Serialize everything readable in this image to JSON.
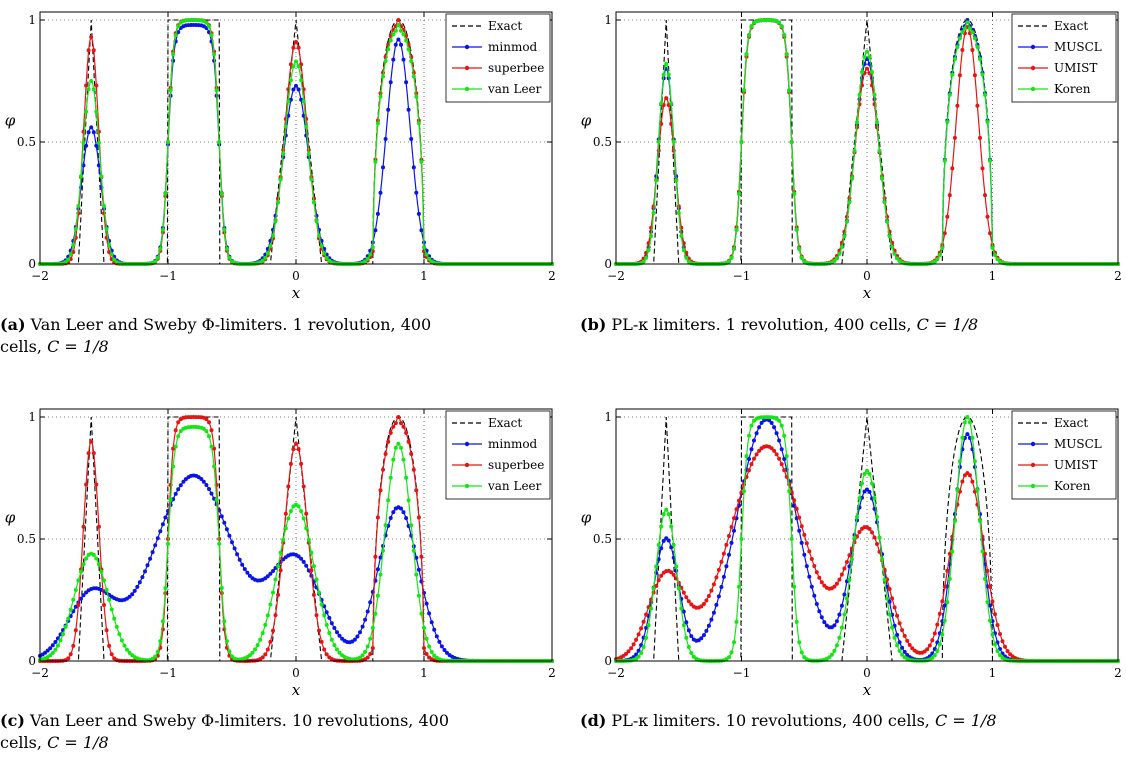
{
  "captions": [
    {
      "label": "(a)",
      "text": "Van Leer and Sweby Φ-limiters. 1 revolution, 400",
      "text2": "cells,",
      "math": "C = 1/8"
    },
    {
      "label": "(b)",
      "text": "PL-κ limiters. 1 revolution, 400 cells,",
      "text2": "",
      "math": "C = 1/8"
    },
    {
      "label": "(c)",
      "text": "Van Leer and Sweby Φ-limiters. 10 revolutions, 400",
      "text2": "cells,",
      "math": "C = 1/8"
    },
    {
      "label": "(d)",
      "text": "PL-κ limiters. 10 revolutions, 400 cells,",
      "text2": "",
      "math": "C = 1/8"
    }
  ],
  "chart_data": [
    {
      "type": "line",
      "panel": "a",
      "xlabel": "x",
      "ylabel": "φ",
      "xlim": [
        -2,
        2
      ],
      "ylim": [
        0,
        1
      ],
      "xticks": [
        -2,
        -1,
        0,
        1,
        2
      ],
      "yticks": [
        0,
        0.5,
        1
      ],
      "xtick_labels": [
        "−2",
        "−1",
        "0",
        "1",
        "2"
      ],
      "ytick_labels": [
        "0",
        "0.5",
        "1"
      ],
      "grid": true,
      "legend": "top-right",
      "series": [
        {
          "name": "Exact",
          "color": "#000000",
          "style": "dashed",
          "marker": false,
          "h": [
            1,
            1,
            1,
            1
          ],
          "w": [
            1,
            1,
            1,
            1
          ]
        },
        {
          "name": "minmod",
          "color": "#0a14e6",
          "style": "solid",
          "marker": true,
          "h": [
            0.56,
            0.98,
            0.73,
            0.92
          ],
          "w": [
            1.35,
            1.1,
            1.2,
            1.12
          ]
        },
        {
          "name": "superbee",
          "color": "#e61414",
          "style": "solid",
          "marker": true,
          "h": [
            0.93,
            1,
            0.91,
            1
          ],
          "w": [
            1.05,
            1,
            1.05,
            1
          ]
        },
        {
          "name": "van Leer",
          "color": "#14e614",
          "style": "solid",
          "marker": true,
          "h": [
            0.75,
            1,
            0.83,
            0.98
          ],
          "w": [
            1.2,
            1.05,
            1.1,
            1.05
          ]
        }
      ]
    },
    {
      "type": "line",
      "panel": "b",
      "xlabel": "x",
      "ylabel": "φ",
      "xlim": [
        -2,
        2
      ],
      "ylim": [
        0,
        1
      ],
      "xticks": [
        -2,
        -1,
        0,
        1,
        2
      ],
      "yticks": [
        0,
        0.5,
        1
      ],
      "xtick_labels": [
        "−2",
        "−1",
        "0",
        "1",
        "2"
      ],
      "ytick_labels": [
        "0",
        "0.5",
        "1"
      ],
      "grid": true,
      "legend": "top-right",
      "series": [
        {
          "name": "Exact",
          "color": "#000000",
          "style": "dashed",
          "marker": false,
          "h": [
            1,
            1,
            1,
            1
          ],
          "w": [
            1,
            1,
            1,
            1
          ]
        },
        {
          "name": "MUSCL",
          "color": "#0a14e6",
          "style": "solid",
          "marker": true,
          "h": [
            0.8,
            1,
            0.84,
            1
          ],
          "w": [
            1.15,
            1.05,
            1.1,
            1.05
          ]
        },
        {
          "name": "UMIST",
          "color": "#e61414",
          "style": "solid",
          "marker": true,
          "h": [
            0.68,
            1,
            0.8,
            0.97
          ],
          "w": [
            1.25,
            1.1,
            1.15,
            1.08
          ]
        },
        {
          "name": "Koren",
          "color": "#14e614",
          "style": "solid",
          "marker": true,
          "h": [
            0.82,
            1,
            0.87,
            0.99
          ],
          "w": [
            1.1,
            1.05,
            1.08,
            1.04
          ]
        }
      ]
    },
    {
      "type": "line",
      "panel": "c",
      "xlabel": "x",
      "ylabel": "φ",
      "xlim": [
        -2,
        2
      ],
      "ylim": [
        0,
        1
      ],
      "xticks": [
        -2,
        -1,
        0,
        1,
        2
      ],
      "yticks": [
        0,
        0.5,
        1
      ],
      "xtick_labels": [
        "−2",
        "−1",
        "0",
        "1",
        "2"
      ],
      "ytick_labels": [
        "0",
        "0.5",
        "1"
      ],
      "grid": true,
      "legend": "top-right",
      "series": [
        {
          "name": "Exact",
          "color": "#000000",
          "style": "dashed",
          "marker": false,
          "h": [
            1,
            1,
            1,
            1
          ],
          "w": [
            1,
            1,
            1,
            1
          ]
        },
        {
          "name": "minmod",
          "color": "#0a14e6",
          "style": "solid",
          "marker": true,
          "h": [
            0.27,
            0.76,
            0.41,
            0.63
          ],
          "w": [
            3.2,
            1.7,
            2.4,
            1.9
          ]
        },
        {
          "name": "superbee",
          "color": "#e61414",
          "style": "solid",
          "marker": true,
          "h": [
            0.9,
            1,
            0.89,
            1
          ],
          "w": [
            1.1,
            1,
            1.1,
            1
          ]
        },
        {
          "name": "van Leer",
          "color": "#14e614",
          "style": "solid",
          "marker": true,
          "h": [
            0.44,
            0.96,
            0.64,
            0.89
          ],
          "w": [
            2.4,
            1.2,
            1.7,
            1.25
          ]
        }
      ]
    },
    {
      "type": "line",
      "panel": "d",
      "xlabel": "x",
      "ylabel": "φ",
      "xlim": [
        -2,
        2
      ],
      "ylim": [
        0,
        1
      ],
      "xticks": [
        -2,
        -1,
        0,
        1,
        2
      ],
      "yticks": [
        0,
        0.5,
        1
      ],
      "xtick_labels": [
        "−2",
        "−1",
        "0",
        "1",
        "2"
      ],
      "ytick_labels": [
        "0",
        "0.5",
        "1"
      ],
      "grid": true,
      "legend": "top-right",
      "series": [
        {
          "name": "Exact",
          "color": "#000000",
          "style": "dashed",
          "marker": false,
          "h": [
            1,
            1,
            1,
            1
          ],
          "w": [
            1,
            1,
            1,
            1
          ]
        },
        {
          "name": "MUSCL",
          "color": "#0a14e6",
          "style": "solid",
          "marker": true,
          "h": [
            0.5,
            0.99,
            0.7,
            0.93
          ],
          "w": [
            1.8,
            1.3,
            1.5,
            1.3
          ]
        },
        {
          "name": "UMIST",
          "color": "#e61414",
          "style": "solid",
          "marker": true,
          "h": [
            0.35,
            0.88,
            0.53,
            0.77
          ],
          "w": [
            2.6,
            1.6,
            2.0,
            1.6
          ]
        },
        {
          "name": "Koren",
          "color": "#14e614",
          "style": "solid",
          "marker": true,
          "h": [
            0.62,
            1,
            0.78,
            1
          ],
          "w": [
            1.5,
            1.15,
            1.3,
            1.15
          ]
        }
      ]
    }
  ]
}
